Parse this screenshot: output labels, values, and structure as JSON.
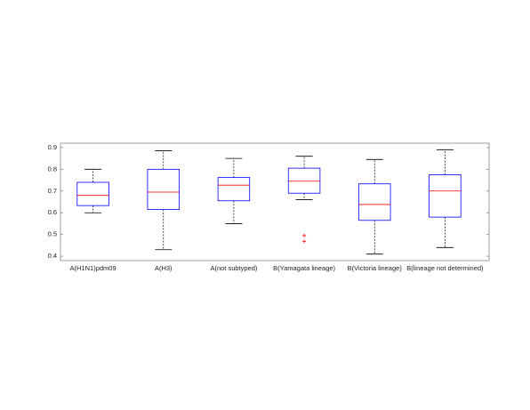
{
  "chart_data": {
    "type": "box",
    "categories": [
      "A(H1N1)pdm09",
      "A(H3)",
      "A(not subtyped)",
      "B(Yamagata lineage)",
      "B(Victoria lineage)",
      "B(lineage not determined)"
    ],
    "series": [
      {
        "name": "min",
        "values": [
          0.6,
          0.43,
          0.55,
          0.66,
          0.41,
          0.44
        ]
      },
      {
        "name": "q1",
        "values": [
          0.633,
          0.615,
          0.655,
          0.69,
          0.565,
          0.58
        ]
      },
      {
        "name": "median",
        "values": [
          0.68,
          0.695,
          0.727,
          0.745,
          0.638,
          0.7
        ]
      },
      {
        "name": "q3",
        "values": [
          0.74,
          0.8,
          0.762,
          0.805,
          0.733,
          0.775
        ]
      },
      {
        "name": "max",
        "values": [
          0.8,
          0.885,
          0.85,
          0.86,
          0.845,
          0.89
        ]
      }
    ],
    "outliers": [
      [],
      [],
      [],
      [
        0.495,
        0.468
      ],
      [],
      []
    ],
    "box_color": "#0000ff",
    "median_color": "#ff0000",
    "whisker_color": "#000000",
    "outlier_color": "#ff0000",
    "ylim": [
      0.38,
      0.92
    ],
    "yticks": [
      0.4,
      0.5,
      0.6,
      0.7,
      0.8,
      0.9
    ]
  }
}
